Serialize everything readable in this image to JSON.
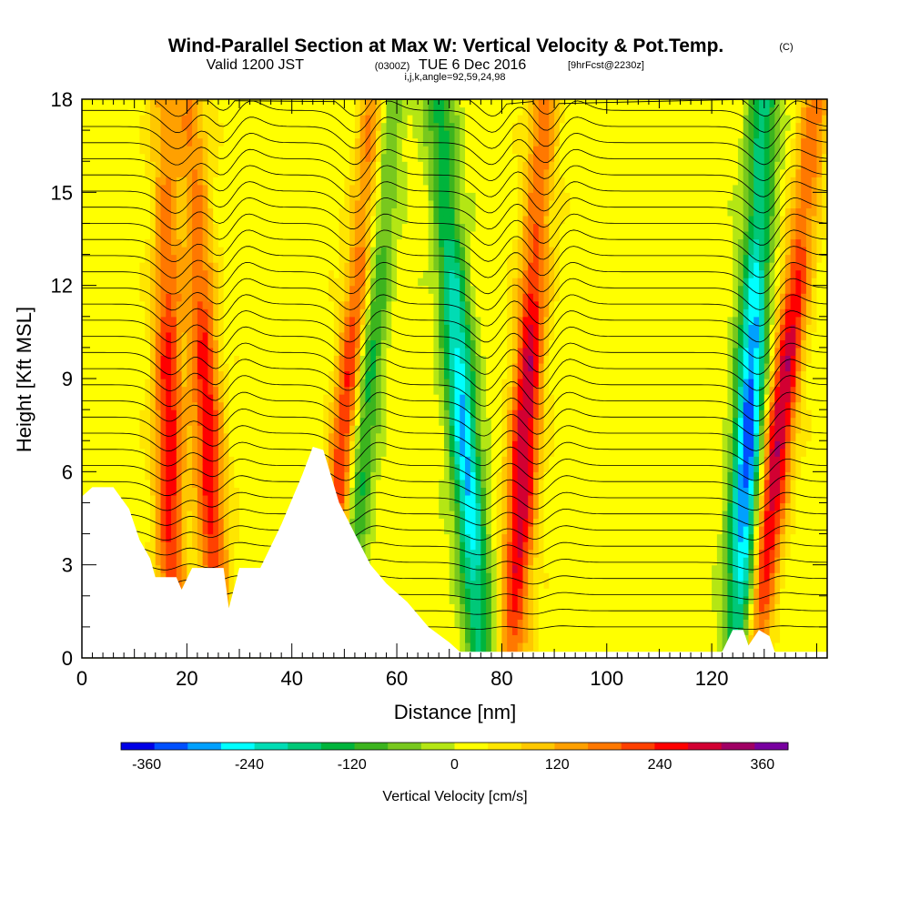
{
  "header": {
    "title": "Wind-Parallel Section at Max W: Vertical Velocity & Pot.Temp.",
    "title_tag": "(C)",
    "valid_prefix": "Valid 1200 JST",
    "valid_utc": "(0300Z)",
    "valid_date": "TUE 6 Dec 2016",
    "forecast": "[9hrFcst@2230z]",
    "params": "i,j,k,angle=92,59,24,98"
  },
  "chart_data": {
    "type": "heatmap",
    "xlabel": "Distance [nm]",
    "ylabel": "Height [Kft MSL]",
    "xlim": [
      0,
      142
    ],
    "ylim": [
      0,
      18
    ],
    "x_ticks": [
      0,
      20,
      40,
      60,
      80,
      100,
      120
    ],
    "y_ticks": [
      0,
      3,
      6,
      9,
      12,
      15,
      18
    ],
    "field": "Vertical Velocity [cm/s]",
    "contours": "Potential temperature",
    "updraft_bands": [
      {
        "x_bottom": 17,
        "x_top": 16,
        "peak": 240
      },
      {
        "x_bottom": 26,
        "x_top": 21,
        "peak": 240
      },
      {
        "x_bottom": 47,
        "x_top": 56,
        "peak": 300
      },
      {
        "x_bottom": 82,
        "x_top": 88,
        "peak": 300
      },
      {
        "x_bottom": 128,
        "x_top": 140,
        "peak": 300
      }
    ],
    "downdraft_bands": [
      {
        "x_bottom": 49,
        "x_top": 59,
        "peak": -240
      },
      {
        "x_bottom": 76,
        "x_top": 68,
        "peak": -300
      },
      {
        "x_bottom": 125,
        "x_top": 130,
        "peak": -360
      }
    ],
    "terrain_kft": [
      [
        0,
        5.2
      ],
      [
        2,
        5.5
      ],
      [
        6,
        5.5
      ],
      [
        9,
        4.8
      ],
      [
        11,
        3.8
      ],
      [
        13,
        3.2
      ],
      [
        14,
        2.6
      ],
      [
        18,
        2.6
      ],
      [
        19,
        2.2
      ],
      [
        21,
        2.9
      ],
      [
        27,
        2.9
      ],
      [
        28,
        1.6
      ],
      [
        30,
        2.9
      ],
      [
        34,
        2.9
      ],
      [
        38,
        4.3
      ],
      [
        42,
        5.9
      ],
      [
        44,
        6.8
      ],
      [
        46,
        6.7
      ],
      [
        49,
        5.0
      ],
      [
        52,
        4.0
      ],
      [
        55,
        3.0
      ],
      [
        58,
        2.4
      ],
      [
        62,
        1.8
      ],
      [
        66,
        1.0
      ],
      [
        70,
        0.5
      ],
      [
        72,
        0.2
      ],
      [
        76,
        0.2
      ],
      [
        122,
        0.2
      ],
      [
        124,
        0.9
      ],
      [
        126,
        0.9
      ],
      [
        127,
        0.4
      ],
      [
        129,
        0.9
      ],
      [
        131,
        0.7
      ],
      [
        132,
        0.2
      ],
      [
        142,
        0.2
      ]
    ],
    "colorbar": {
      "title": "Vertical Velocity [cm/s]",
      "min": -390,
      "max": 390,
      "tick_labels": [
        "-360",
        "-240",
        "-120",
        "0",
        "120",
        "240",
        "360"
      ],
      "tick_values": [
        -360,
        -240,
        -120,
        0,
        120,
        240,
        360
      ],
      "colors": [
        "#0000e6",
        "#0050ff",
        "#00a0ff",
        "#00ffff",
        "#00dcb4",
        "#00c878",
        "#00b43c",
        "#3cb41e",
        "#78c81e",
        "#b4e614",
        "#ffff00",
        "#ffe600",
        "#ffc800",
        "#ffa000",
        "#ff7800",
        "#ff4000",
        "#ff0000",
        "#d20032",
        "#a00064",
        "#7800a0"
      ]
    }
  }
}
